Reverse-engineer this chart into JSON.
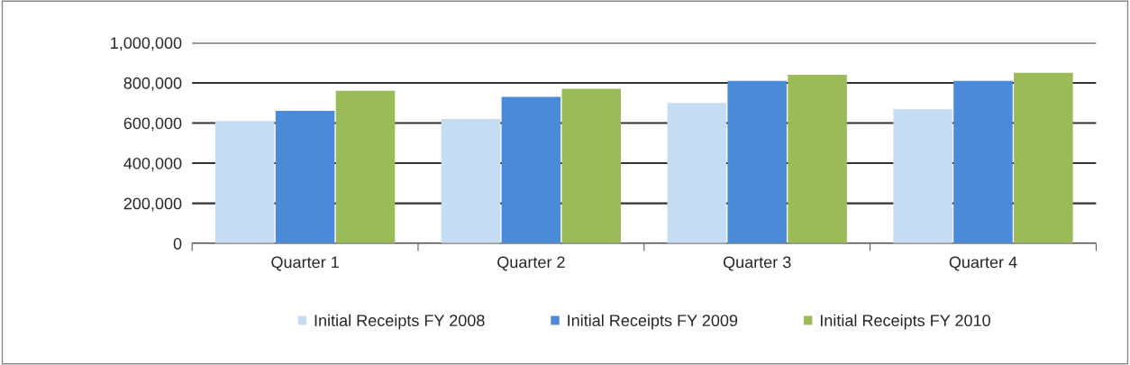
{
  "chart_data": {
    "type": "bar",
    "categories": [
      "Quarter 1",
      "Quarter 2",
      "Quarter 3",
      "Quarter 4"
    ],
    "series": [
      {
        "name": "Initial Receipts FY 2008",
        "color": "#c6dcf2",
        "values": [
          610000,
          620000,
          700000,
          670000
        ]
      },
      {
        "name": "Initial Receipts FY 2009",
        "color": "#4a8ad8",
        "values": [
          660000,
          730000,
          810000,
          810000
        ]
      },
      {
        "name": "Initial Receipts FY 2010",
        "color": "#9bbb59",
        "values": [
          760000,
          770000,
          840000,
          850000
        ]
      }
    ],
    "ylim": [
      0,
      1000000
    ],
    "yticks": [
      {
        "value": 0,
        "label": "0"
      },
      {
        "value": 200000,
        "label": "200,000"
      },
      {
        "value": 400000,
        "label": "400,000"
      },
      {
        "value": 600000,
        "label": "600,000"
      },
      {
        "value": 800000,
        "label": "800,000"
      },
      {
        "value": 1000000,
        "label": "1,000,000"
      }
    ],
    "grid": "y",
    "legend": "bottom"
  }
}
